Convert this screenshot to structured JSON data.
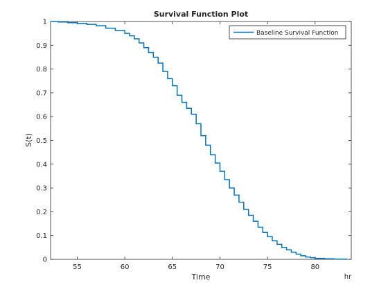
{
  "chart_data": {
    "type": "line",
    "title": "Survival Function Plot",
    "xlabel": "Time",
    "ylabel": "S(t)",
    "x_unit": "hr",
    "xlim": [
      52.2,
      83.8
    ],
    "ylim": [
      0,
      1
    ],
    "xticks": [
      55,
      60,
      65,
      70,
      75,
      80
    ],
    "yticks": [
      0,
      0.1,
      0.2,
      0.3,
      0.4,
      0.5,
      0.6,
      0.7,
      0.8,
      0.9,
      1
    ],
    "legend": {
      "position": "top-right",
      "entries": [
        "Baseline Survival Function"
      ]
    },
    "grid": false,
    "series": [
      {
        "name": "Baseline Survival Function",
        "color": "#0072BD",
        "step": true,
        "x": [
          52.2,
          53.0,
          54.0,
          55.0,
          56.0,
          57.0,
          58.0,
          59.0,
          60.0,
          60.5,
          61.0,
          61.5,
          62.0,
          62.5,
          63.0,
          63.5,
          64.0,
          64.5,
          65.0,
          65.5,
          66.0,
          66.5,
          67.0,
          67.5,
          68.0,
          68.5,
          69.0,
          69.5,
          70.0,
          70.5,
          71.0,
          71.5,
          72.0,
          72.5,
          73.0,
          73.5,
          74.0,
          74.5,
          75.0,
          75.5,
          76.0,
          76.5,
          77.0,
          77.5,
          78.0,
          78.5,
          79.0,
          79.5,
          80.0,
          81.0,
          82.0,
          83.3
        ],
        "y": [
          1.0,
          0.998,
          0.995,
          0.992,
          0.988,
          0.982,
          0.972,
          0.962,
          0.95,
          0.94,
          0.927,
          0.91,
          0.89,
          0.87,
          0.85,
          0.825,
          0.79,
          0.76,
          0.73,
          0.69,
          0.66,
          0.635,
          0.61,
          0.57,
          0.52,
          0.48,
          0.44,
          0.405,
          0.37,
          0.335,
          0.3,
          0.27,
          0.24,
          0.21,
          0.185,
          0.16,
          0.135,
          0.113,
          0.095,
          0.078,
          0.063,
          0.05,
          0.04,
          0.03,
          0.022,
          0.015,
          0.01,
          0.007,
          0.004,
          0.002,
          0.001,
          0.0
        ]
      }
    ]
  }
}
